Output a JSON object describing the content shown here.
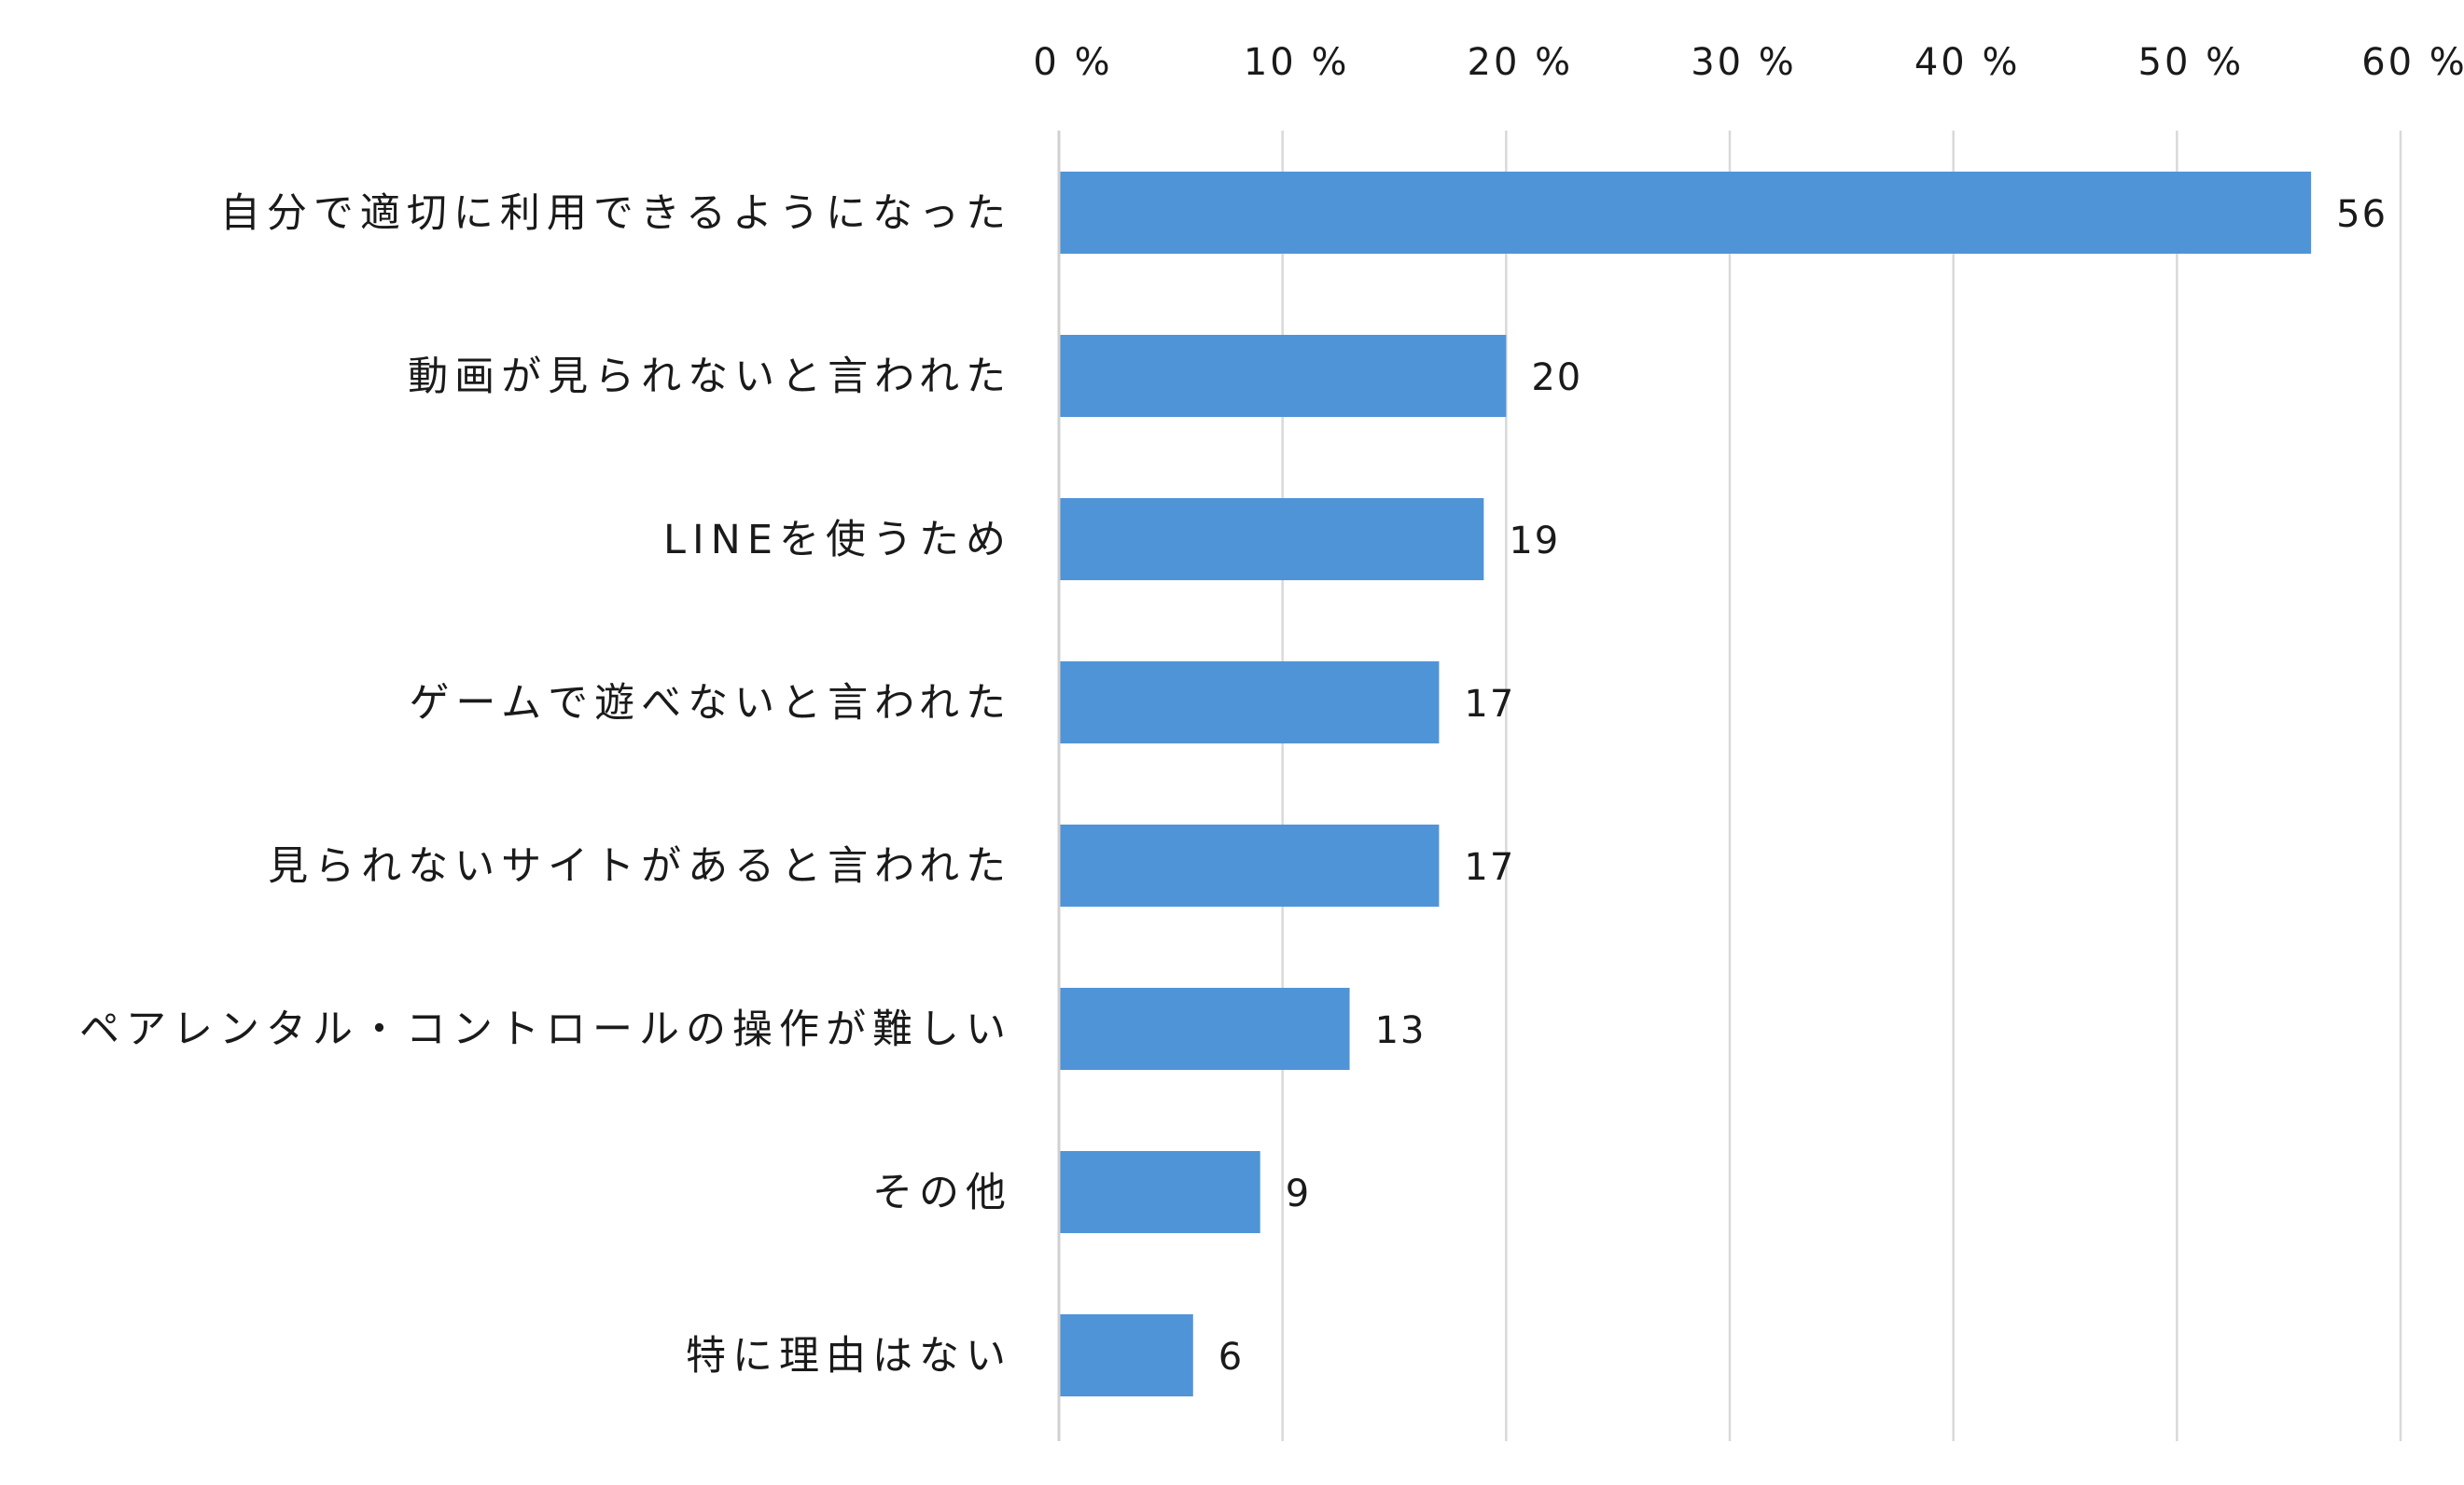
{
  "chart_data": {
    "type": "bar",
    "orientation": "horizontal",
    "categories": [
      "自分で適切に利用できるようになった",
      "動画が見られないと言われた",
      "LINEを使うため",
      "ゲームで遊べないと言われた",
      "見られないサイトがあると言われた",
      "ペアレンタル・コントロールの操作が難しい",
      "その他",
      "特に理由はない"
    ],
    "values": [
      56,
      20,
      19,
      17,
      17,
      13,
      9,
      6
    ],
    "data_labels": [
      "56",
      "20",
      "19",
      "17",
      "17",
      "13",
      "9",
      "6"
    ],
    "x_ticks": [
      0,
      10,
      20,
      30,
      40,
      50,
      60
    ],
    "x_tick_labels": [
      "0 %",
      "10 %",
      "20 %",
      "30 %",
      "40 %",
      "50 %",
      "60 %"
    ],
    "xlim": [
      0,
      60
    ],
    "x_axis_position": "top",
    "grid": true,
    "legend": "none",
    "bar_color": "#5094d8",
    "title": "",
    "xlabel": "",
    "ylabel": ""
  }
}
